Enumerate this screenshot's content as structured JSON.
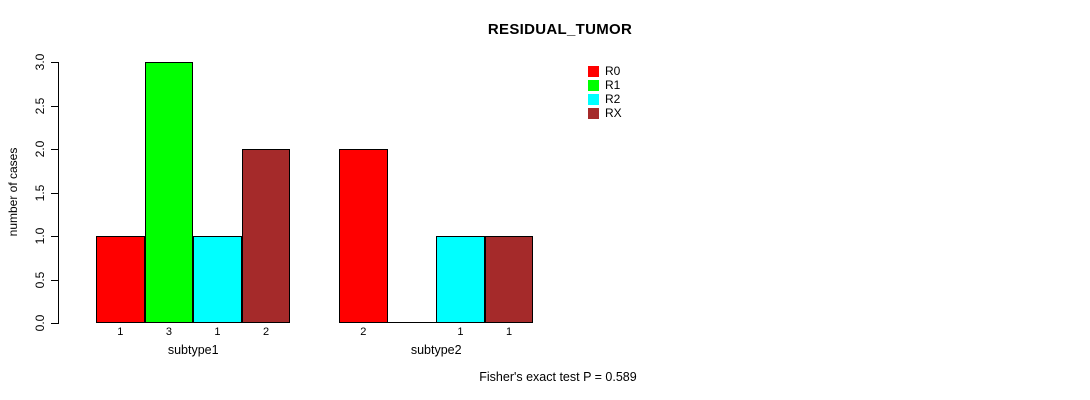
{
  "chart_data": {
    "type": "bar",
    "title": "RESIDUAL_TUMOR",
    "ylabel": "number of cases",
    "xlabel": "",
    "ylim": [
      0,
      3
    ],
    "yticks": [
      "0.0",
      "0.5",
      "1.0",
      "1.5",
      "2.0",
      "2.5",
      "3.0"
    ],
    "categories": [
      "subtype1",
      "subtype2"
    ],
    "series": [
      {
        "name": "R0",
        "color": "#FF0000",
        "values": [
          1,
          2
        ]
      },
      {
        "name": "R1",
        "color": "#00FF00",
        "values": [
          3,
          0
        ]
      },
      {
        "name": "R2",
        "color": "#00FFFF",
        "values": [
          1,
          1
        ]
      },
      {
        "name": "RX",
        "color": "#A52A2A",
        "values": [
          2,
          1
        ]
      }
    ],
    "value_labels": [
      [
        "1",
        "3",
        "1",
        "2"
      ],
      [
        "2",
        "",
        "1",
        "1"
      ]
    ],
    "legend_position": "top-right",
    "grid": false,
    "annotation": "Fisher's exact test P = 0.589"
  }
}
